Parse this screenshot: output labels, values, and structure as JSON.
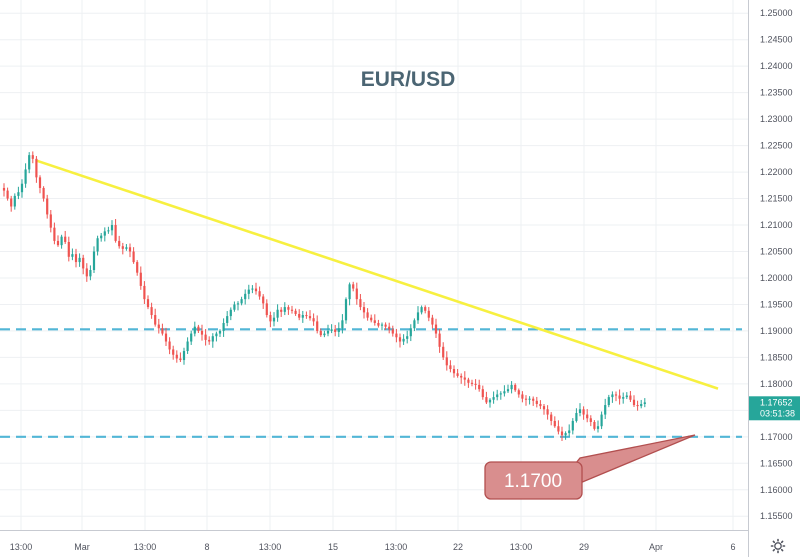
{
  "chart_data": {
    "type": "candlestick",
    "title": "EUR/USD",
    "y_axis": {
      "range": [
        1.1524,
        1.2525
      ],
      "ticks": [
        "1.25000",
        "1.24500",
        "1.24000",
        "1.23500",
        "1.23000",
        "1.22500",
        "1.22000",
        "1.21500",
        "1.21000",
        "1.20500",
        "1.20000",
        "1.19500",
        "1.19000",
        "1.18500",
        "1.18000",
        "1.17500",
        "1.17000",
        "1.16500",
        "1.16000",
        "1.15500"
      ]
    },
    "x_axis": {
      "ticks": [
        "13:00",
        "Mar",
        "13:00",
        "8",
        "13:00",
        "15",
        "13:00",
        "22",
        "13:00",
        "29",
        "Apr",
        "6"
      ]
    },
    "grid": true,
    "current_price": {
      "value": "1.17652",
      "countdown": "03:51:38",
      "color": "#26a69a"
    },
    "horizontal_lines": [
      1.1903,
      1.17
    ],
    "trendline": {
      "from": 1.2222,
      "to": 1.1791
    },
    "callout": {
      "text": "1.1700"
    },
    "colors": {
      "up": "#26a69a",
      "down": "#ef5350",
      "trendline": "#f7f040",
      "support": "#52b6d6",
      "callout_fill": "#d98e8e",
      "callout_border": "#b24f4f"
    },
    "candle_closes": [
      1.2165,
      1.215,
      1.2135,
      1.2155,
      1.2162,
      1.2178,
      1.2205,
      1.2232,
      1.2225,
      1.219,
      1.217,
      1.215,
      1.212,
      1.2095,
      1.207,
      1.2062,
      1.2078,
      1.2068,
      1.204,
      1.2045,
      1.203,
      1.2038,
      1.2018,
      1.2003,
      1.2015,
      1.205,
      1.2075,
      1.208,
      1.2088,
      1.209,
      1.21,
      1.207,
      1.206,
      1.2055,
      1.2058,
      1.205,
      1.203,
      1.201,
      1.1985,
      1.196,
      1.1945,
      1.193,
      1.1912,
      1.1905,
      1.1895,
      1.188,
      1.1865,
      1.1855,
      1.1848,
      1.1845,
      1.1862,
      1.188,
      1.1895,
      1.1908,
      1.19,
      1.1893,
      1.1883,
      1.188,
      1.189,
      1.1895,
      1.19,
      1.1915,
      1.1928,
      1.194,
      1.195,
      1.1952,
      1.196,
      1.197,
      1.1978,
      1.198,
      1.1975,
      1.1965,
      1.1952,
      1.193,
      1.1918,
      1.1925,
      1.194,
      1.1936,
      1.1945,
      1.194,
      1.1938,
      1.1932,
      1.1925,
      1.193,
      1.1928,
      1.1924,
      1.1918,
      1.19,
      1.1892,
      1.1895,
      1.19,
      1.1903,
      1.1898,
      1.1905,
      1.192,
      1.196,
      1.1988,
      1.198,
      1.196,
      1.1945,
      1.1935,
      1.1925,
      1.192,
      1.1915,
      1.191,
      1.1912,
      1.1908,
      1.1903,
      1.1895,
      1.1888,
      1.188,
      1.1885,
      1.189,
      1.1905,
      1.192,
      1.1935,
      1.1945,
      1.1938,
      1.1925,
      1.1912,
      1.1895,
      1.187,
      1.185,
      1.1835,
      1.1828,
      1.182,
      1.1815,
      1.1812,
      1.1808,
      1.1802,
      1.18,
      1.1798,
      1.179,
      1.1775,
      1.1765,
      1.177,
      1.1775,
      1.178,
      1.1782,
      1.1786,
      1.179,
      1.1798,
      1.1788,
      1.178,
      1.1772,
      1.177,
      1.1772,
      1.1768,
      1.1762,
      1.1758,
      1.1752,
      1.1742,
      1.173,
      1.172,
      1.171,
      1.1703,
      1.1707,
      1.1712,
      1.173,
      1.1745,
      1.1752,
      1.1742,
      1.1735,
      1.1728,
      1.1715,
      1.172,
      1.1742,
      1.176,
      1.1775,
      1.178,
      1.1778,
      1.1772,
      1.1775,
      1.1778,
      1.177,
      1.176,
      1.1758,
      1.1762,
      1.1765
    ]
  }
}
